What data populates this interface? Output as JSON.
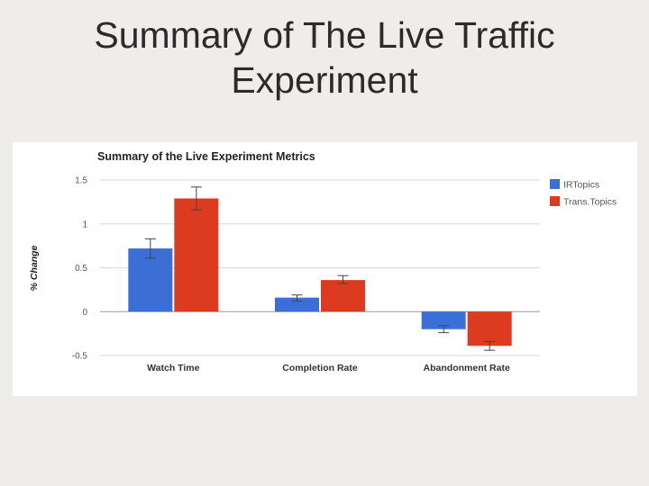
{
  "slide": {
    "title_line1": "Summary of The Live Traffic",
    "title_line2": "Experiment"
  },
  "chart_data": {
    "type": "bar",
    "title": "Summary of the Live Experiment Metrics",
    "xlabel": "",
    "ylabel": "% Change",
    "ylim": [
      -0.5,
      1.5
    ],
    "yticks": [
      1.5,
      1,
      0.5,
      0,
      -0.5
    ],
    "ytick_labels": [
      "1.5",
      "1",
      "0.5",
      "0",
      "-0.5"
    ],
    "grid": true,
    "legend_position": "top-right",
    "categories": [
      "Watch Time",
      "Completion Rate",
      "Abandonment Rate"
    ],
    "series": [
      {
        "name": "IRTopics",
        "color": "#3b6fd6",
        "values": [
          0.72,
          0.16,
          -0.2
        ],
        "error_low": [
          0.61,
          0.12,
          -0.24
        ],
        "error_high": [
          0.83,
          0.19,
          -0.16
        ]
      },
      {
        "name": "Trans.Topics",
        "color": "#dc3b1f",
        "values": [
          1.29,
          0.36,
          -0.39
        ],
        "error_low": [
          1.16,
          0.32,
          -0.44
        ],
        "error_high": [
          1.42,
          0.41,
          -0.34
        ]
      }
    ]
  }
}
